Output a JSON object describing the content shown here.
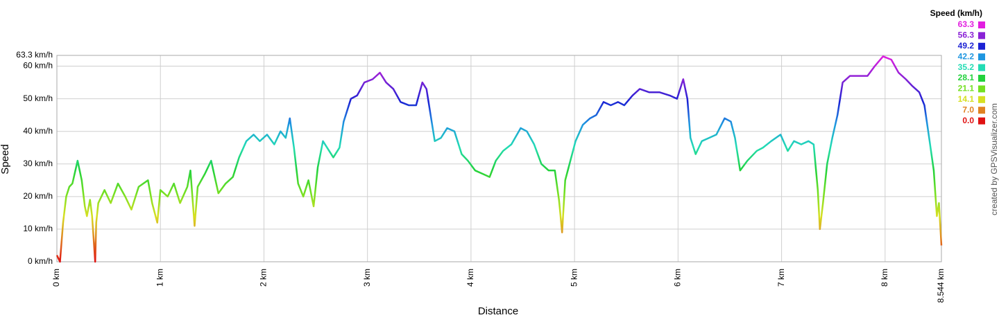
{
  "chart_data": {
    "type": "line",
    "x_label": "Distance",
    "y_label": "Speed",
    "credit": "created by GPSVisualizer.com",
    "xlim": [
      0,
      8.544
    ],
    "ylim": [
      0,
      63.3
    ],
    "xticks": [
      {
        "value": 0,
        "label": "0 km"
      },
      {
        "value": 1,
        "label": "1 km"
      },
      {
        "value": 2,
        "label": "2 km"
      },
      {
        "value": 3,
        "label": "3 km"
      },
      {
        "value": 4,
        "label": "4 km"
      },
      {
        "value": 5,
        "label": "5 km"
      },
      {
        "value": 6,
        "label": "6 km"
      },
      {
        "value": 7,
        "label": "7 km"
      },
      {
        "value": 8,
        "label": "8 km"
      },
      {
        "value": 8.544,
        "label": "8.544 km"
      }
    ],
    "yticks": [
      {
        "value": 0,
        "label": "0 km/h"
      },
      {
        "value": 10,
        "label": "10 km/h"
      },
      {
        "value": 20,
        "label": "20 km/h"
      },
      {
        "value": 30,
        "label": "30 km/h"
      },
      {
        "value": 40,
        "label": "40 km/h"
      },
      {
        "value": 50,
        "label": "50 km/h"
      },
      {
        "value": 60,
        "label": "60 km/h"
      },
      {
        "value": 63.3,
        "label": "63.3 km/h"
      }
    ],
    "grid": true,
    "colorscale_title": "Speed (km/h)",
    "colorscale": [
      {
        "value": 63.3,
        "label": "63.3",
        "color": "#e21ee0"
      },
      {
        "value": 56.3,
        "label": "56.3",
        "color": "#8a22d6"
      },
      {
        "value": 49.2,
        "label": "49.2",
        "color": "#1c22d4"
      },
      {
        "value": 42.2,
        "label": "42.2",
        "color": "#1e96e0"
      },
      {
        "value": 35.2,
        "label": "35.2",
        "color": "#22dcb4"
      },
      {
        "value": 28.1,
        "label": "28.1",
        "color": "#22d23c"
      },
      {
        "value": 21.1,
        "label": "21.1",
        "color": "#74e022"
      },
      {
        "value": 14.1,
        "label": "14.1",
        "color": "#d6e022"
      },
      {
        "value": 7.0,
        "label": "7.0",
        "color": "#e08222"
      },
      {
        "value": 0.0,
        "label": "0.0",
        "color": "#e01212"
      }
    ],
    "x": [
      0,
      0.03,
      0.06,
      0.09,
      0.12,
      0.15,
      0.2,
      0.24,
      0.27,
      0.29,
      0.32,
      0.34,
      0.37,
      0.38,
      0.4,
      0.46,
      0.52,
      0.59,
      0.66,
      0.72,
      0.79,
      0.88,
      0.92,
      0.97,
      1.0,
      1.07,
      1.13,
      1.19,
      1.26,
      1.29,
      1.33,
      1.36,
      1.43,
      1.49,
      1.56,
      1.63,
      1.7,
      1.76,
      1.83,
      1.9,
      1.96,
      2.03,
      2.1,
      2.16,
      2.21,
      2.25,
      2.29,
      2.33,
      2.38,
      2.43,
      2.48,
      2.52,
      2.57,
      2.61,
      2.67,
      2.73,
      2.77,
      2.84,
      2.9,
      2.97,
      3.05,
      3.12,
      3.18,
      3.25,
      3.32,
      3.4,
      3.47,
      3.53,
      3.57,
      3.61,
      3.65,
      3.71,
      3.77,
      3.84,
      3.91,
      3.97,
      4.04,
      4.11,
      4.18,
      4.24,
      4.31,
      4.39,
      4.48,
      4.54,
      4.61,
      4.68,
      4.75,
      4.81,
      4.85,
      4.88,
      4.91,
      4.96,
      5.01,
      5.08,
      5.15,
      5.21,
      5.28,
      5.35,
      5.42,
      5.48,
      5.56,
      5.63,
      5.72,
      5.82,
      5.92,
      5.99,
      6.05,
      6.09,
      6.12,
      6.17,
      6.23,
      6.3,
      6.37,
      6.45,
      6.51,
      6.55,
      6.6,
      6.67,
      6.76,
      6.82,
      6.9,
      6.99,
      7.06,
      7.12,
      7.19,
      7.26,
      7.31,
      7.35,
      7.37,
      7.4,
      7.44,
      7.49,
      7.54,
      7.59,
      7.66,
      7.74,
      7.83,
      7.9,
      7.98,
      8.06,
      8.13,
      8.2,
      8.26,
      8.33,
      8.38,
      8.43,
      8.47,
      8.5,
      8.52,
      8.544
    ],
    "values": [
      2,
      0,
      12,
      20,
      23,
      24,
      31,
      25,
      17,
      14,
      19,
      14,
      0,
      12,
      18,
      22,
      18,
      24,
      20,
      16,
      23,
      25,
      18,
      12,
      22,
      20,
      24,
      18,
      23,
      28,
      11,
      23,
      27,
      31,
      21,
      24,
      26,
      32,
      37,
      39,
      37,
      39,
      36,
      40,
      38,
      44,
      35,
      24,
      20,
      25,
      17,
      29,
      37,
      35,
      32,
      35,
      43,
      50,
      51,
      55,
      56,
      58,
      55,
      53,
      49,
      48,
      48,
      55,
      53,
      45,
      37,
      38,
      41,
      40,
      33,
      31,
      28,
      27,
      26,
      31,
      34,
      36,
      41,
      40,
      36,
      30,
      28,
      28,
      19,
      9,
      25,
      31,
      37,
      42,
      44,
      45,
      49,
      48,
      49,
      48,
      51,
      53,
      52,
      52,
      51,
      50,
      56,
      50,
      38,
      33,
      37,
      38,
      39,
      44,
      43,
      38,
      28,
      31,
      34,
      35,
      37,
      39,
      34,
      37,
      36,
      37,
      36,
      22,
      10,
      18,
      30,
      38,
      45,
      55,
      57,
      57,
      57,
      60,
      63,
      62,
      58,
      56,
      54,
      52,
      48,
      37,
      28,
      14,
      18,
      5
    ]
  }
}
